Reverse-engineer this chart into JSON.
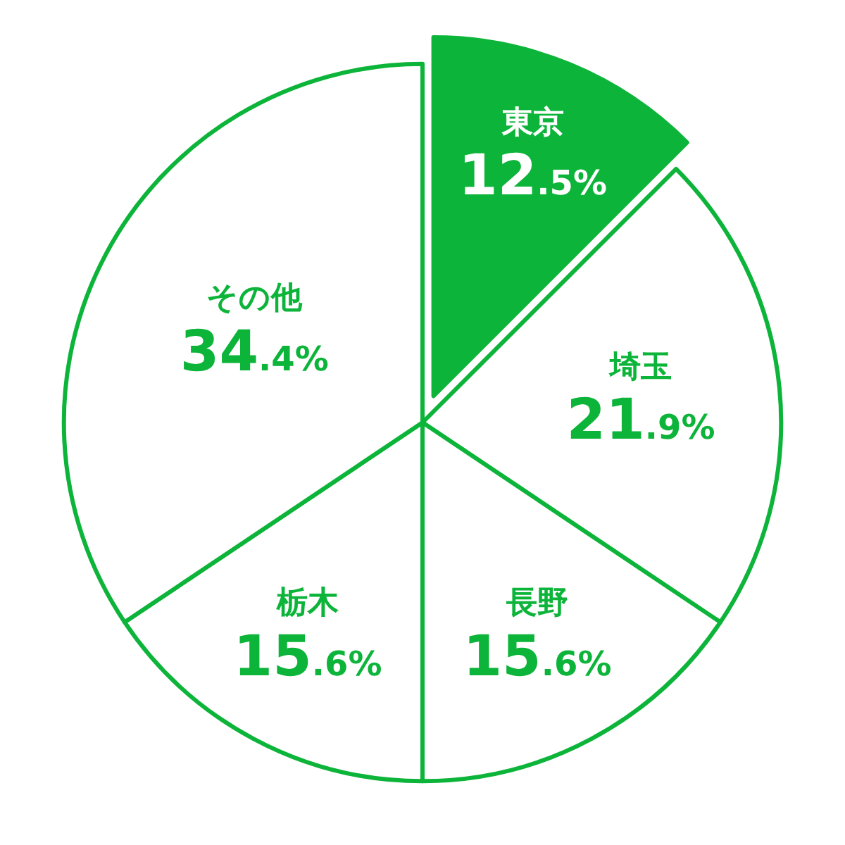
{
  "chart_data": {
    "type": "pie",
    "categories": [
      "東京",
      "埼玉",
      "長野",
      "栃木",
      "その他"
    ],
    "values": [
      12.5,
      21.9,
      15.6,
      15.6,
      34.4
    ],
    "colors": [
      "#0db43a",
      "#ffffff",
      "#ffffff",
      "#ffffff",
      "#ffffff"
    ],
    "value_labels": [
      "12.5%",
      "21.9%",
      "15.6%",
      "15.6%",
      "34.4%"
    ],
    "legend": false
  }
}
